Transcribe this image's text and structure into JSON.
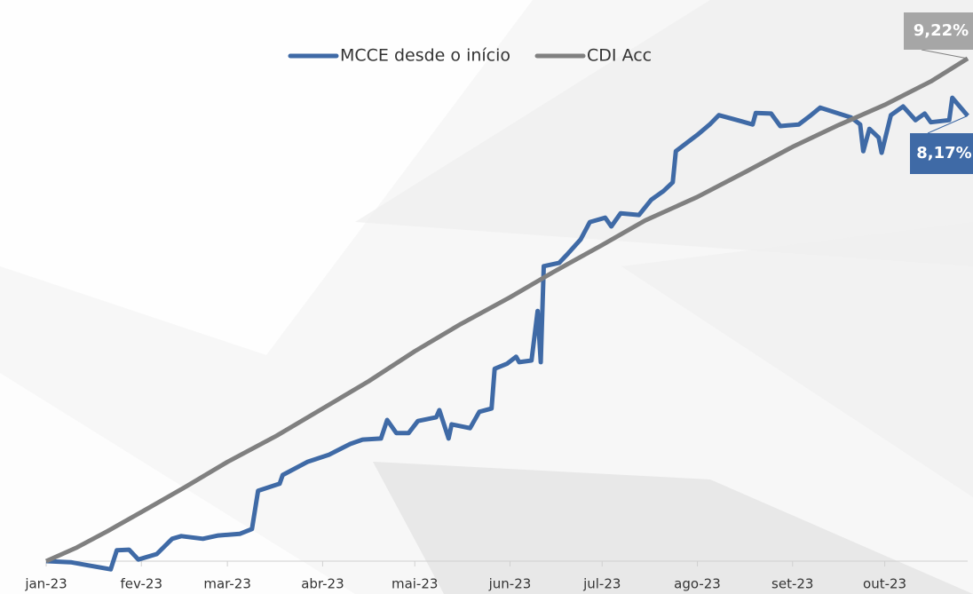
{
  "chart_data": {
    "type": "line",
    "xlim": [
      0,
      300
    ],
    "ylim": [
      0,
      10
    ],
    "xticks": [
      {
        "value": 0,
        "label": "jan-23"
      },
      {
        "value": 31,
        "label": "fev-23"
      },
      {
        "value": 59,
        "label": "mar-23"
      },
      {
        "value": 90,
        "label": "abr-23"
      },
      {
        "value": 120,
        "label": "mai-23"
      },
      {
        "value": 151,
        "label": "jun-23"
      },
      {
        "value": 181,
        "label": "jul-23"
      },
      {
        "value": 212,
        "label": "ago-23"
      },
      {
        "value": 243,
        "label": "set-23"
      },
      {
        "value": 273,
        "label": "out-23"
      }
    ],
    "legend": "top",
    "series": [
      {
        "name": "MCCE desde o início",
        "color": "#3f6aa6",
        "x": [
          0,
          8,
          14,
          21,
          23,
          27,
          30,
          36,
          41,
          44,
          51,
          56,
          63,
          67,
          69,
          76,
          77,
          85,
          92,
          99,
          103,
          109,
          111,
          114,
          118,
          121,
          127,
          128,
          131,
          132,
          138,
          141,
          145,
          146,
          150,
          153,
          154,
          158,
          160,
          161,
          162,
          167,
          170,
          174,
          177,
          182,
          184,
          187,
          193,
          197,
          201,
          204,
          205,
          209,
          212,
          216,
          219,
          225,
          230,
          231,
          236,
          239,
          245,
          249,
          252,
          258,
          262,
          265,
          266,
          268,
          271,
          272,
          275,
          279,
          283,
          286,
          288,
          294,
          295,
          300
        ],
        "values": [
          0,
          -0.02,
          -0.08,
          -0.15,
          0.2,
          0.21,
          0.03,
          0.13,
          0.41,
          0.46,
          0.41,
          0.47,
          0.5,
          0.59,
          1.29,
          1.42,
          1.58,
          1.82,
          1.95,
          2.15,
          2.23,
          2.25,
          2.59,
          2.35,
          2.35,
          2.57,
          2.64,
          2.77,
          2.25,
          2.51,
          2.44,
          2.74,
          2.8,
          3.53,
          3.62,
          3.75,
          3.65,
          3.68,
          4.59,
          3.65,
          5.41,
          5.47,
          5.65,
          5.9,
          6.22,
          6.3,
          6.14,
          6.38,
          6.35,
          6.63,
          6.79,
          6.95,
          7.52,
          7.69,
          7.82,
          8.01,
          8.18,
          8.09,
          8.01,
          8.22,
          8.21,
          7.98,
          8.01,
          8.18,
          8.32,
          8.21,
          8.14,
          8.01,
          7.52,
          7.93,
          7.77,
          7.49,
          8.18,
          8.34,
          8.09,
          8.21,
          8.05,
          8.09,
          8.5,
          8.17
        ],
        "value_labels": [
          null,
          null,
          null,
          null,
          null,
          null,
          null,
          null,
          null,
          null,
          null,
          null,
          null,
          null,
          null,
          null,
          null,
          null,
          null,
          null,
          null,
          null,
          null,
          null,
          null,
          null,
          null,
          null,
          null,
          null,
          null,
          null,
          null,
          null,
          null,
          null,
          null,
          null,
          null,
          null,
          null,
          null,
          null,
          null,
          null,
          null,
          null,
          null,
          null,
          null,
          null,
          null,
          null,
          null,
          null,
          null,
          null,
          null,
          null,
          null,
          null,
          null,
          null,
          null,
          null,
          null,
          null,
          null,
          null,
          null,
          null,
          null,
          null,
          null,
          null,
          null,
          null,
          null,
          null,
          "8,17%"
        ]
      },
      {
        "name": "CDI Acc",
        "color": "#808080",
        "x": [
          0,
          10,
          20,
          31,
          45,
          59,
          75,
          90,
          105,
          120,
          135,
          151,
          165,
          181,
          195,
          212,
          228,
          243,
          258,
          273,
          288,
          300
        ],
        "values": [
          0,
          0.25,
          0.55,
          0.9,
          1.35,
          1.82,
          2.3,
          2.8,
          3.3,
          3.85,
          4.35,
          4.84,
          5.3,
          5.8,
          6.25,
          6.68,
          7.15,
          7.6,
          8.0,
          8.37,
          8.8,
          9.22
        ],
        "value_labels": [
          null,
          null,
          null,
          null,
          null,
          null,
          null,
          null,
          null,
          null,
          null,
          null,
          null,
          null,
          null,
          null,
          null,
          null,
          null,
          null,
          null,
          "9,22%"
        ]
      }
    ]
  }
}
